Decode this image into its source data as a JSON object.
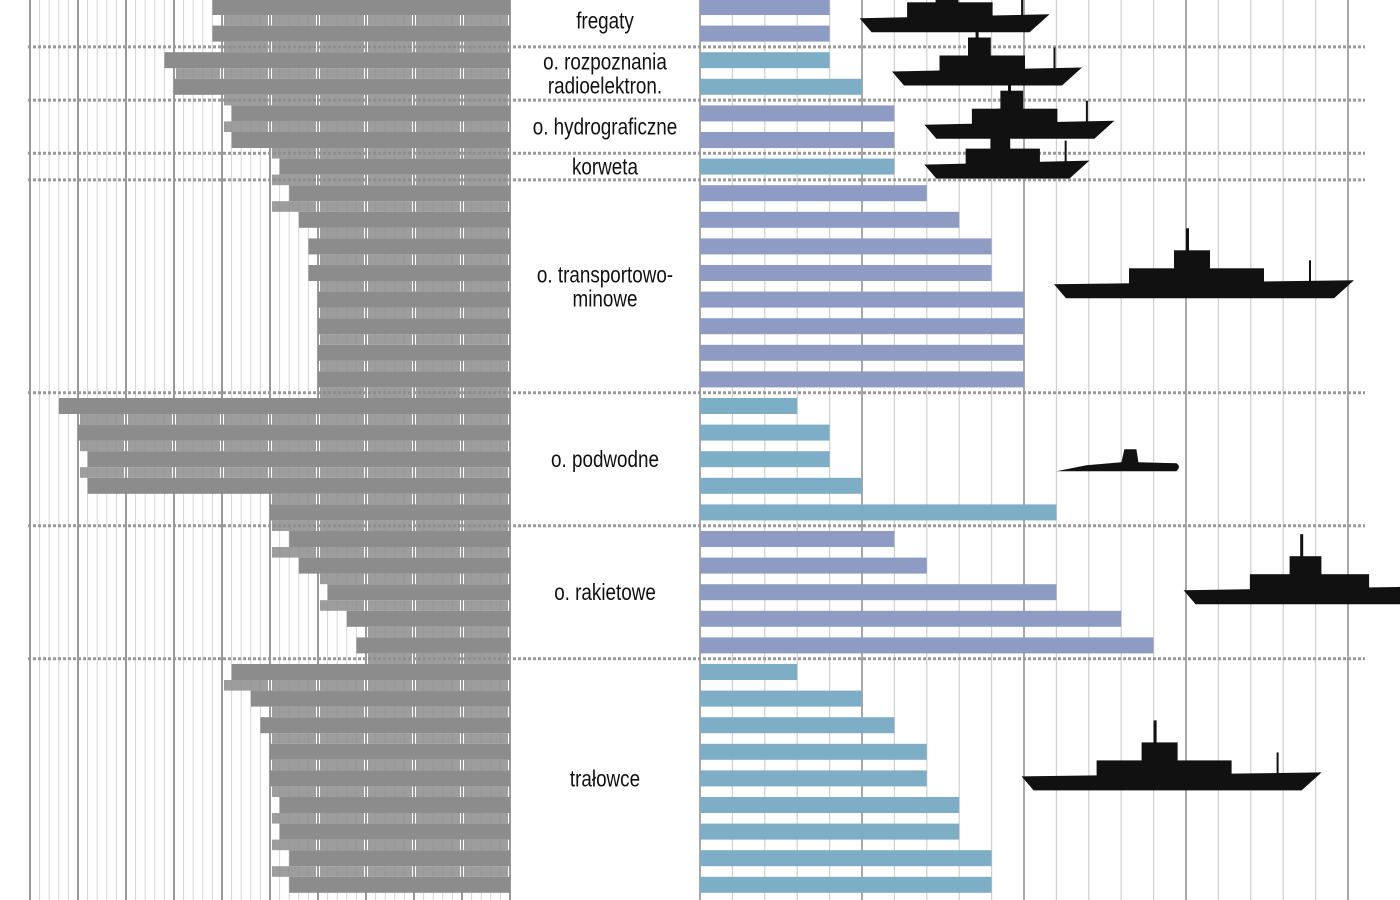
{
  "chart_data": {
    "type": "bar",
    "layout": "back-to-back horizontal bars",
    "grid": true,
    "colors": {
      "left": "#8c8c8c",
      "right_a": "#8e9cc4",
      "right_b": "#7eaec6",
      "silhouette": "#111111"
    },
    "groups": [
      {
        "label": "fregaty",
        "rows": 2,
        "color": "right_a",
        "icon": "frigate-silhouette"
      },
      {
        "label": "o. rozpoznania\nradioelektron.",
        "rows": 2,
        "color": "right_b",
        "icon": "recon-ship-silhouette"
      },
      {
        "label": "o. hydrograficzne",
        "rows": 2,
        "color": "right_a",
        "icon": "hydrographic-ship-silhouette"
      },
      {
        "label": "korweta",
        "rows": 1,
        "color": "right_b",
        "icon": "corvette-silhouette"
      },
      {
        "label": "o. transportowo-\nminowe",
        "rows": 8,
        "color": "right_a",
        "icon": "minelayer-silhouette"
      },
      {
        "label": "o. podwodne",
        "rows": 5,
        "color": "right_b",
        "icon": "submarine-silhouette"
      },
      {
        "label": "o. rakietowe",
        "rows": 5,
        "color": "right_a",
        "icon": "missile-boat-silhouette"
      },
      {
        "label": "trałowce",
        "rows": 9,
        "color": "right_b",
        "icon": "minesweeper-silhouette"
      }
    ],
    "left_values": [
      31,
      31,
      36,
      35,
      29,
      29,
      24,
      23,
      22,
      21,
      21,
      20,
      20,
      20,
      20,
      47,
      45,
      44,
      44,
      25,
      23,
      22,
      19,
      17,
      16,
      29,
      27,
      26,
      25,
      25,
      24,
      24,
      23,
      23
    ],
    "right_values": [
      4,
      4,
      4,
      5,
      6,
      6,
      6,
      7,
      8,
      9,
      9,
      10,
      10,
      10,
      10,
      3,
      4,
      4,
      5,
      11,
      6,
      7,
      11,
      13,
      14,
      3,
      5,
      6,
      7,
      7,
      8,
      8,
      9,
      9
    ],
    "left_xlim": [
      0,
      50
    ],
    "right_xlim": [
      0,
      20.5
    ]
  }
}
